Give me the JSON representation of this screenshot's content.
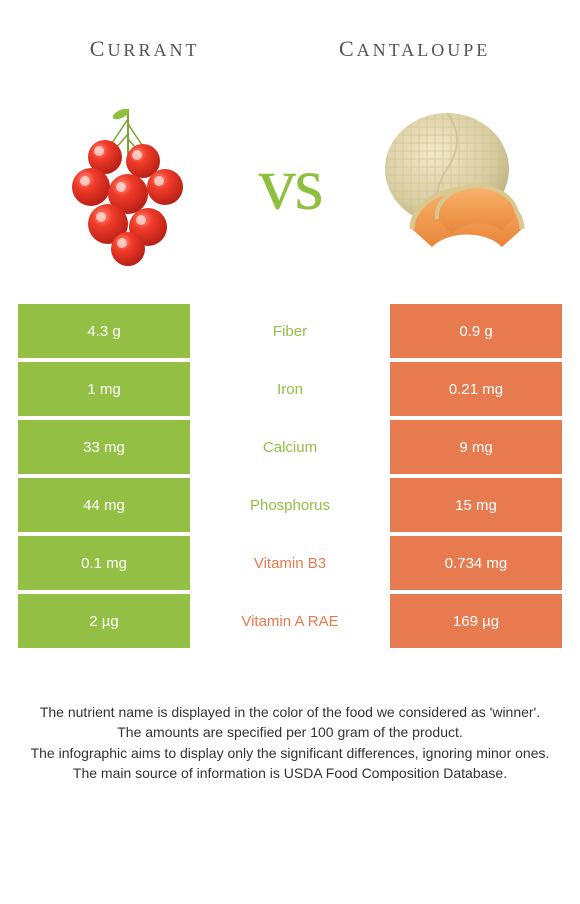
{
  "header": {
    "left": "Currant",
    "right": "Cantaloupe"
  },
  "vs_label": "vs",
  "colors": {
    "left": "#93bf45",
    "right": "#e77a4f",
    "vs": "#8fbf3f"
  },
  "rows": [
    {
      "left": "4.3 g",
      "label": "Fiber",
      "right": "0.9 g",
      "winner": "left"
    },
    {
      "left": "1 mg",
      "label": "Iron",
      "right": "0.21 mg",
      "winner": "left"
    },
    {
      "left": "33 mg",
      "label": "Calcium",
      "right": "9 mg",
      "winner": "left"
    },
    {
      "left": "44 mg",
      "label": "Phosphorus",
      "right": "15 mg",
      "winner": "left"
    },
    {
      "left": "0.1 mg",
      "label": "Vitamin B3",
      "right": "0.734 mg",
      "winner": "right"
    },
    {
      "left": "2 µg",
      "label": "Vitamin A RAE",
      "right": "169 µg",
      "winner": "right"
    }
  ],
  "footnotes": [
    "The nutrient name is displayed in the color of the food we considered as 'winner'.",
    "The amounts are specified per 100 gram of the product.",
    "The infographic aims to display only the significant differences, ignoring minor ones.",
    "The main source of information is USDA Food Composition Database."
  ]
}
